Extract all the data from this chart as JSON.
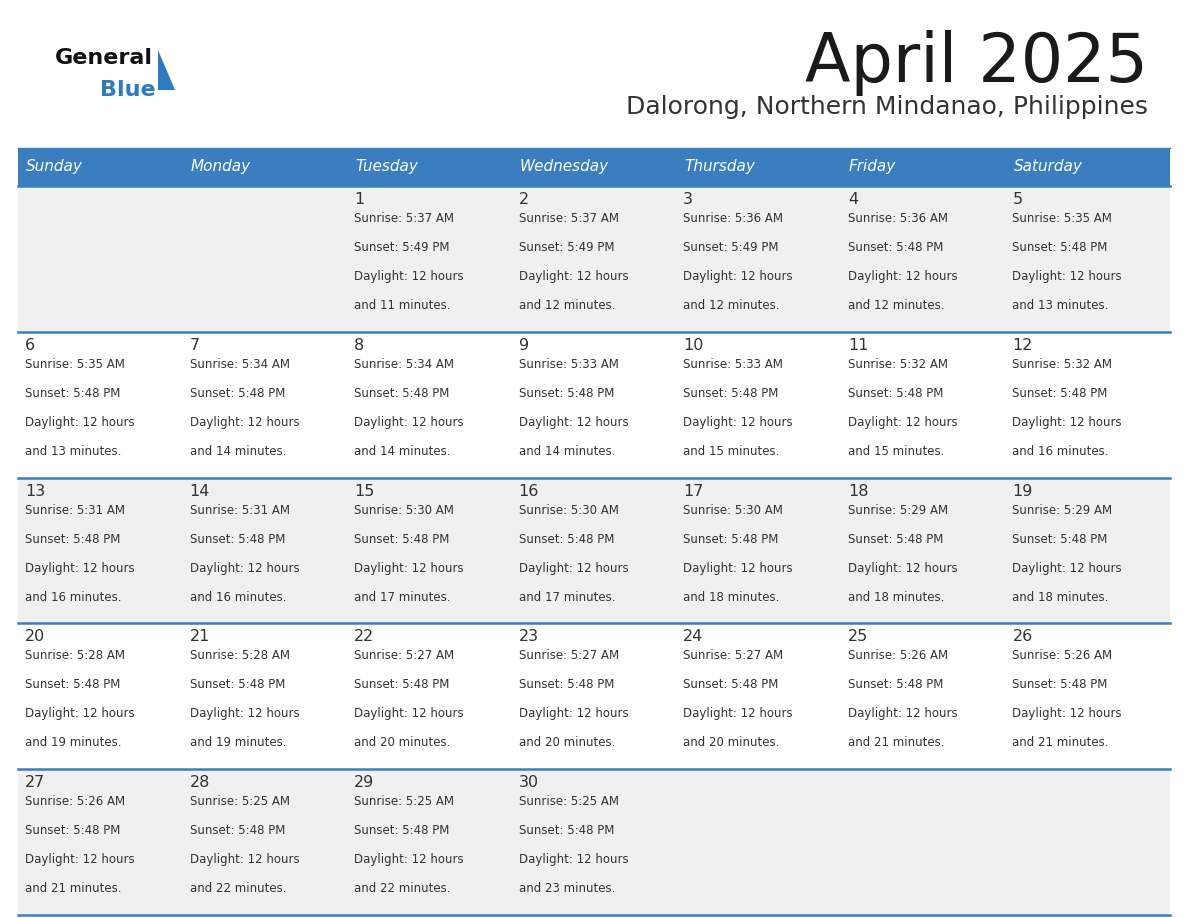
{
  "title": "April 2025",
  "subtitle": "Dalorong, Northern Mindanao, Philippines",
  "days_of_week": [
    "Sunday",
    "Monday",
    "Tuesday",
    "Wednesday",
    "Thursday",
    "Friday",
    "Saturday"
  ],
  "header_bg": "#3a7ebf",
  "header_text": "#FFFFFF",
  "row_bg_odd": "#f0f0f0",
  "row_bg_even": "#ffffff",
  "cell_text": "#333333",
  "border_color": "#3a7ebf",
  "title_color": "#1a1a1a",
  "subtitle_color": "#333333",
  "logo_general_color": "#111111",
  "logo_blue_color": "#2e7bbf",
  "weeks": [
    [
      {
        "day": "",
        "sunrise": "",
        "sunset": "",
        "daylight": ""
      },
      {
        "day": "",
        "sunrise": "",
        "sunset": "",
        "daylight": ""
      },
      {
        "day": "1",
        "sunrise": "Sunrise: 5:37 AM",
        "sunset": "Sunset: 5:49 PM",
        "daylight": "Daylight: 12 hours\nand 11 minutes."
      },
      {
        "day": "2",
        "sunrise": "Sunrise: 5:37 AM",
        "sunset": "Sunset: 5:49 PM",
        "daylight": "Daylight: 12 hours\nand 12 minutes."
      },
      {
        "day": "3",
        "sunrise": "Sunrise: 5:36 AM",
        "sunset": "Sunset: 5:49 PM",
        "daylight": "Daylight: 12 hours\nand 12 minutes."
      },
      {
        "day": "4",
        "sunrise": "Sunrise: 5:36 AM",
        "sunset": "Sunset: 5:48 PM",
        "daylight": "Daylight: 12 hours\nand 12 minutes."
      },
      {
        "day": "5",
        "sunrise": "Sunrise: 5:35 AM",
        "sunset": "Sunset: 5:48 PM",
        "daylight": "Daylight: 12 hours\nand 13 minutes."
      }
    ],
    [
      {
        "day": "6",
        "sunrise": "Sunrise: 5:35 AM",
        "sunset": "Sunset: 5:48 PM",
        "daylight": "Daylight: 12 hours\nand 13 minutes."
      },
      {
        "day": "7",
        "sunrise": "Sunrise: 5:34 AM",
        "sunset": "Sunset: 5:48 PM",
        "daylight": "Daylight: 12 hours\nand 14 minutes."
      },
      {
        "day": "8",
        "sunrise": "Sunrise: 5:34 AM",
        "sunset": "Sunset: 5:48 PM",
        "daylight": "Daylight: 12 hours\nand 14 minutes."
      },
      {
        "day": "9",
        "sunrise": "Sunrise: 5:33 AM",
        "sunset": "Sunset: 5:48 PM",
        "daylight": "Daylight: 12 hours\nand 14 minutes."
      },
      {
        "day": "10",
        "sunrise": "Sunrise: 5:33 AM",
        "sunset": "Sunset: 5:48 PM",
        "daylight": "Daylight: 12 hours\nand 15 minutes."
      },
      {
        "day": "11",
        "sunrise": "Sunrise: 5:32 AM",
        "sunset": "Sunset: 5:48 PM",
        "daylight": "Daylight: 12 hours\nand 15 minutes."
      },
      {
        "day": "12",
        "sunrise": "Sunrise: 5:32 AM",
        "sunset": "Sunset: 5:48 PM",
        "daylight": "Daylight: 12 hours\nand 16 minutes."
      }
    ],
    [
      {
        "day": "13",
        "sunrise": "Sunrise: 5:31 AM",
        "sunset": "Sunset: 5:48 PM",
        "daylight": "Daylight: 12 hours\nand 16 minutes."
      },
      {
        "day": "14",
        "sunrise": "Sunrise: 5:31 AM",
        "sunset": "Sunset: 5:48 PM",
        "daylight": "Daylight: 12 hours\nand 16 minutes."
      },
      {
        "day": "15",
        "sunrise": "Sunrise: 5:30 AM",
        "sunset": "Sunset: 5:48 PM",
        "daylight": "Daylight: 12 hours\nand 17 minutes."
      },
      {
        "day": "16",
        "sunrise": "Sunrise: 5:30 AM",
        "sunset": "Sunset: 5:48 PM",
        "daylight": "Daylight: 12 hours\nand 17 minutes."
      },
      {
        "day": "17",
        "sunrise": "Sunrise: 5:30 AM",
        "sunset": "Sunset: 5:48 PM",
        "daylight": "Daylight: 12 hours\nand 18 minutes."
      },
      {
        "day": "18",
        "sunrise": "Sunrise: 5:29 AM",
        "sunset": "Sunset: 5:48 PM",
        "daylight": "Daylight: 12 hours\nand 18 minutes."
      },
      {
        "day": "19",
        "sunrise": "Sunrise: 5:29 AM",
        "sunset": "Sunset: 5:48 PM",
        "daylight": "Daylight: 12 hours\nand 18 minutes."
      }
    ],
    [
      {
        "day": "20",
        "sunrise": "Sunrise: 5:28 AM",
        "sunset": "Sunset: 5:48 PM",
        "daylight": "Daylight: 12 hours\nand 19 minutes."
      },
      {
        "day": "21",
        "sunrise": "Sunrise: 5:28 AM",
        "sunset": "Sunset: 5:48 PM",
        "daylight": "Daylight: 12 hours\nand 19 minutes."
      },
      {
        "day": "22",
        "sunrise": "Sunrise: 5:27 AM",
        "sunset": "Sunset: 5:48 PM",
        "daylight": "Daylight: 12 hours\nand 20 minutes."
      },
      {
        "day": "23",
        "sunrise": "Sunrise: 5:27 AM",
        "sunset": "Sunset: 5:48 PM",
        "daylight": "Daylight: 12 hours\nand 20 minutes."
      },
      {
        "day": "24",
        "sunrise": "Sunrise: 5:27 AM",
        "sunset": "Sunset: 5:48 PM",
        "daylight": "Daylight: 12 hours\nand 20 minutes."
      },
      {
        "day": "25",
        "sunrise": "Sunrise: 5:26 AM",
        "sunset": "Sunset: 5:48 PM",
        "daylight": "Daylight: 12 hours\nand 21 minutes."
      },
      {
        "day": "26",
        "sunrise": "Sunrise: 5:26 AM",
        "sunset": "Sunset: 5:48 PM",
        "daylight": "Daylight: 12 hours\nand 21 minutes."
      }
    ],
    [
      {
        "day": "27",
        "sunrise": "Sunrise: 5:26 AM",
        "sunset": "Sunset: 5:48 PM",
        "daylight": "Daylight: 12 hours\nand 21 minutes."
      },
      {
        "day": "28",
        "sunrise": "Sunrise: 5:25 AM",
        "sunset": "Sunset: 5:48 PM",
        "daylight": "Daylight: 12 hours\nand 22 minutes."
      },
      {
        "day": "29",
        "sunrise": "Sunrise: 5:25 AM",
        "sunset": "Sunset: 5:48 PM",
        "daylight": "Daylight: 12 hours\nand 22 minutes."
      },
      {
        "day": "30",
        "sunrise": "Sunrise: 5:25 AM",
        "sunset": "Sunset: 5:48 PM",
        "daylight": "Daylight: 12 hours\nand 23 minutes."
      },
      {
        "day": "",
        "sunrise": "",
        "sunset": "",
        "daylight": ""
      },
      {
        "day": "",
        "sunrise": "",
        "sunset": "",
        "daylight": ""
      },
      {
        "day": "",
        "sunrise": "",
        "sunset": "",
        "daylight": ""
      }
    ]
  ]
}
